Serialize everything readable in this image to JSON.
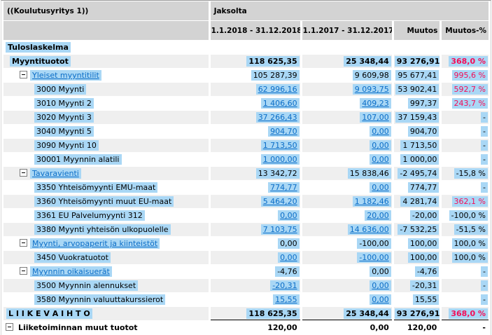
{
  "colors": {
    "header_bg": "#d3d3d3",
    "row_stripe": "#efefef",
    "selection_highlight": "#a9d7f5",
    "link_blue": "#0b6dc7",
    "alert_red": "#f40d57"
  },
  "header": {
    "company": "((Koulutusyritys 1))",
    "period_label": "Jaksolta",
    "columns": {
      "period_current": "1.1.2018 - 31.12.2018",
      "period_previous": "1.1.2017 - 31.12.2017",
      "change": "Muutos",
      "change_pct": "Muutos-%"
    }
  },
  "rows": [
    {
      "label": "Tuloslaskelma",
      "bold": true,
      "highlight": true,
      "indent": 3,
      "shade": false,
      "cells": [
        null,
        null,
        null,
        null
      ]
    },
    {
      "label": "Myyntituotot",
      "bold": true,
      "highlight": true,
      "indent": 9,
      "shade": true,
      "cells": [
        {
          "text": "118 625,35",
          "bold": true,
          "highlight": true
        },
        {
          "text": "25 348,44",
          "bold": true,
          "highlight": true
        },
        {
          "text": "93 276,91",
          "bold": true,
          "highlight": true
        },
        {
          "text": "368,0 %",
          "bold": true,
          "red": true,
          "highlight": true
        }
      ]
    },
    {
      "label": "Yleiset myyntitilit",
      "link": true,
      "box": true,
      "highlight": true,
      "indent": 23,
      "shade": false,
      "cells": [
        {
          "text": "105 287,39",
          "highlight": true
        },
        {
          "text": "9 609,98",
          "highlight": true
        },
        {
          "text": "95 677,41",
          "highlight": true
        },
        {
          "text": "995,6 %",
          "red": true,
          "highlight": true
        }
      ]
    },
    {
      "label": "3000 Myynti",
      "highlight": true,
      "indent": 44,
      "shade": true,
      "cells": [
        {
          "text": "62 996,16",
          "link": true,
          "highlight": true
        },
        {
          "text": "9 093,75",
          "link": true,
          "highlight": true
        },
        {
          "text": "53 902,41",
          "highlight": true
        },
        {
          "text": "592,7 %",
          "red": true,
          "highlight": true
        }
      ]
    },
    {
      "label": "3010 Myynti 2",
      "highlight": true,
      "indent": 44,
      "shade": false,
      "cells": [
        {
          "text": "1 406,60",
          "link": true,
          "highlight": true
        },
        {
          "text": "409,23",
          "link": true,
          "highlight": true
        },
        {
          "text": "997,37",
          "highlight": true
        },
        {
          "text": "243,7 %",
          "red": true,
          "highlight": true
        }
      ]
    },
    {
      "label": "3020 Myynti 3",
      "highlight": true,
      "indent": 44,
      "shade": true,
      "cells": [
        {
          "text": "37 266,43",
          "link": true,
          "highlight": true
        },
        {
          "text": "107,00",
          "link": true,
          "highlight": true
        },
        {
          "text": "37 159,43",
          "highlight": true
        },
        {
          "text": "-",
          "highlight": true
        }
      ]
    },
    {
      "label": "3040 Myynti 5",
      "highlight": true,
      "indent": 44,
      "shade": false,
      "cells": [
        {
          "text": "904,70",
          "link": true,
          "highlight": true
        },
        {
          "text": "0,00",
          "link": true,
          "highlight": true
        },
        {
          "text": "904,70",
          "highlight": true
        },
        {
          "text": "-",
          "highlight": true
        }
      ]
    },
    {
      "label": "3090 Myynti 10",
      "highlight": true,
      "indent": 44,
      "shade": true,
      "cells": [
        {
          "text": "1 713,50",
          "link": true,
          "highlight": true
        },
        {
          "text": "0,00",
          "link": true,
          "highlight": true
        },
        {
          "text": "1 713,50",
          "highlight": true
        },
        {
          "text": "-",
          "highlight": true
        }
      ]
    },
    {
      "label": "30001 Myynnin alatili",
      "highlight": true,
      "indent": 44,
      "shade": false,
      "cells": [
        {
          "text": "1 000,00",
          "link": true,
          "highlight": true
        },
        {
          "text": "0,00",
          "link": true,
          "highlight": true
        },
        {
          "text": "1 000,00",
          "highlight": true
        },
        {
          "text": "-",
          "highlight": true
        }
      ]
    },
    {
      "label": "Tavaravienti",
      "link": true,
      "box": true,
      "highlight": true,
      "indent": 23,
      "shade": true,
      "cells": [
        {
          "text": "13 342,72",
          "highlight": true
        },
        {
          "text": "15 838,46",
          "highlight": true
        },
        {
          "text": "-2 495,74",
          "highlight": true
        },
        {
          "text": "-15,8 %",
          "highlight": true
        }
      ]
    },
    {
      "label": "3350 Yhteisömyynti EMU-maat",
      "highlight": true,
      "indent": 44,
      "shade": false,
      "cells": [
        {
          "text": "774,77",
          "link": true,
          "highlight": true
        },
        {
          "text": "0,00",
          "link": true,
          "highlight": true
        },
        {
          "text": "774,77",
          "highlight": true
        },
        {
          "text": "-",
          "highlight": true
        }
      ]
    },
    {
      "label": "3360 Yhteisömyynti muut EU-maat",
      "highlight": true,
      "indent": 44,
      "shade": true,
      "cells": [
        {
          "text": "5 464,20",
          "link": true,
          "highlight": true
        },
        {
          "text": "1 182,46",
          "link": true,
          "highlight": true
        },
        {
          "text": "4 281,74",
          "highlight": true
        },
        {
          "text": "362,1 %",
          "red": true,
          "highlight": true
        }
      ]
    },
    {
      "label": "3361 EU Palvelumyynti 312",
      "highlight": true,
      "indent": 44,
      "shade": false,
      "cells": [
        {
          "text": "0,00",
          "link": true,
          "highlight": true
        },
        {
          "text": "20,00",
          "link": true,
          "highlight": true
        },
        {
          "text": "-20,00",
          "highlight": true
        },
        {
          "text": "-100,0 %",
          "highlight": true
        }
      ]
    },
    {
      "label": "3380 Myynti yhteisön ulkopuolelle",
      "highlight": true,
      "indent": 44,
      "shade": true,
      "cells": [
        {
          "text": "7 103,75",
          "link": true,
          "highlight": true
        },
        {
          "text": "14 636,00",
          "link": true,
          "highlight": true
        },
        {
          "text": "-7 532,25",
          "highlight": true
        },
        {
          "text": "-51,5 %",
          "highlight": true
        }
      ]
    },
    {
      "label": "Myynti, arvopaperit ja kiinteistöt",
      "link": true,
      "box": true,
      "highlight": true,
      "indent": 23,
      "shade": false,
      "cells": [
        {
          "text": "0,00",
          "highlight": true
        },
        {
          "text": "-100,00",
          "highlight": true
        },
        {
          "text": "100,00",
          "highlight": true
        },
        {
          "text": "100,0 %",
          "highlight": true
        }
      ]
    },
    {
      "label": "3450 Vuokratuotot",
      "highlight": true,
      "indent": 44,
      "shade": true,
      "cells": [
        {
          "text": "0,00",
          "link": true,
          "highlight": true
        },
        {
          "text": "-100,00",
          "link": true,
          "highlight": true
        },
        {
          "text": "100,00",
          "highlight": true
        },
        {
          "text": "100,0 %",
          "highlight": true
        }
      ]
    },
    {
      "label": "Myynnin oikaisuerät",
      "link": true,
      "box": true,
      "highlight": true,
      "indent": 23,
      "shade": false,
      "cells": [
        {
          "text": "-4,76",
          "highlight": true
        },
        {
          "text": "0,00",
          "highlight": true
        },
        {
          "text": "-4,76",
          "highlight": true
        },
        {
          "text": "-",
          "highlight": true
        }
      ]
    },
    {
      "label": "3500 Myynnin alennukset",
      "highlight": true,
      "indent": 44,
      "shade": true,
      "cells": [
        {
          "text": "-20,31",
          "link": true,
          "highlight": true
        },
        {
          "text": "0,00",
          "link": true,
          "highlight": true
        },
        {
          "text": "-20,31",
          "highlight": true
        },
        {
          "text": "-",
          "highlight": true
        }
      ]
    },
    {
      "label": "3580 Myynnin valuuttakurssierot",
      "highlight": true,
      "indent": 44,
      "shade": false,
      "cells": [
        {
          "text": "15,55",
          "link": true,
          "highlight": true
        },
        {
          "text": "0,00",
          "link": true,
          "highlight": true
        },
        {
          "text": "15,55",
          "highlight": true
        },
        {
          "text": "-",
          "highlight": true
        }
      ]
    },
    {
      "label": "L I I K E V A I H T O",
      "bold": true,
      "highlight": true,
      "indent": 4,
      "shade": true,
      "underline": true,
      "cells": [
        {
          "text": "118 625,35",
          "bold": true,
          "highlight": true
        },
        {
          "text": "25 348,44",
          "bold": true,
          "highlight": true
        },
        {
          "text": "93 276,91",
          "bold": true,
          "highlight": true
        },
        {
          "text": "368,0 %",
          "bold": true,
          "red": true,
          "highlight": true
        }
      ]
    },
    {
      "label": "Liiketoiminnan muut tuotot",
      "bold": true,
      "box": true,
      "indent": 3,
      "shade": false,
      "cells": [
        {
          "text": "120,00",
          "bold": true
        },
        {
          "text": "0,00",
          "bold": true
        },
        {
          "text": "120,00",
          "bold": true
        },
        {
          "text": "-",
          "bold": true
        }
      ]
    }
  ]
}
